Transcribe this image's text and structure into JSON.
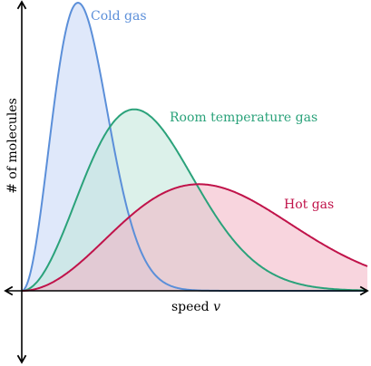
{
  "figure": {
    "x_axis_label": "speed",
    "x_axis_var": "v",
    "y_axis_label": "# of molecules"
  },
  "curves": [
    {
      "id": "cold",
      "label": "Cold gas",
      "stroke": "#5b8fd9",
      "fill": "#c5d6f5",
      "peak_speed": 1.0,
      "peak_height": 1.0
    },
    {
      "id": "room",
      "label": "Room temperature gas",
      "stroke": "#2aa27a",
      "fill": "#bfe5d8",
      "peak_speed": 2.0,
      "peak_height": 0.63
    },
    {
      "id": "hot",
      "label": "Hot gas",
      "stroke": "#c0134a",
      "fill": "#f2b3c3",
      "peak_speed": 3.15,
      "peak_height": 0.37
    }
  ]
}
